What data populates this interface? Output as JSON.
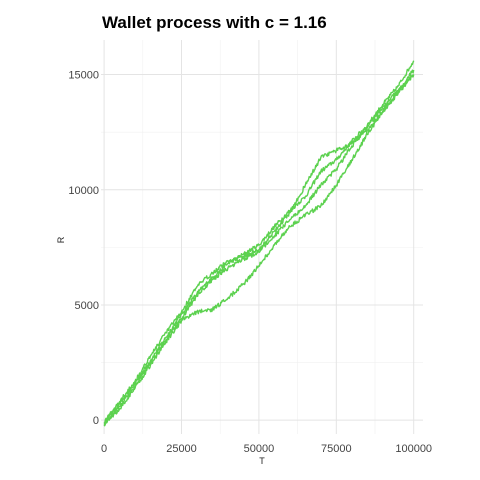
{
  "chart_data": {
    "type": "line",
    "title": "Wallet process with c =  1.16",
    "xlabel": "T",
    "ylabel": "R",
    "xlim": [
      -1000,
      103000
    ],
    "ylim": [
      -600,
      16500
    ],
    "x_ticks": [
      0,
      25000,
      50000,
      75000,
      100000
    ],
    "x_tick_labels": [
      "0",
      "25000",
      "50000",
      "75000",
      "100000"
    ],
    "y_ticks": [
      0,
      5000,
      10000,
      15000
    ],
    "y_tick_labels": [
      "0",
      "5000",
      "10000",
      "15000"
    ],
    "grid": true,
    "legend": "none",
    "line_color": "#5cd14f",
    "series": [
      {
        "x": [
          0,
          5000,
          10000,
          15000,
          20000,
          25000,
          30000,
          35000,
          40000,
          45000,
          50000,
          55000,
          60000,
          65000,
          70000,
          75000,
          80000,
          85000,
          90000,
          95000,
          100000
        ],
        "values": [
          -100,
          700,
          1600,
          2600,
          3600,
          4600,
          5500,
          6200,
          6800,
          7200,
          7600,
          8400,
          9100,
          9700,
          10800,
          11300,
          12100,
          12800,
          13700,
          14500,
          15600
        ]
      },
      {
        "x": [
          0,
          5000,
          10000,
          15000,
          20000,
          25000,
          30000,
          35000,
          40000,
          45000,
          50000,
          55000,
          60000,
          65000,
          70000,
          75000,
          80000,
          85000,
          90000,
          95000,
          100000
        ],
        "values": [
          -100,
          800,
          1700,
          2800,
          3800,
          4700,
          5800,
          6400,
          6900,
          7100,
          7400,
          8200,
          9000,
          10200,
          11400,
          11700,
          12000,
          12600,
          13400,
          14300,
          15200
        ]
      },
      {
        "x": [
          0,
          5000,
          10000,
          15000,
          20000,
          25000,
          30000,
          35000,
          40000,
          45000,
          50000,
          55000,
          60000,
          65000,
          70000,
          75000,
          80000,
          85000,
          90000,
          95000,
          100000
        ],
        "values": [
          -150,
          600,
          1500,
          2500,
          3500,
          4400,
          5400,
          6100,
          6600,
          7000,
          7300,
          8000,
          8700,
          9300,
          10200,
          10900,
          11900,
          12700,
          13600,
          14300,
          15000
        ]
      },
      {
        "x": [
          0,
          5000,
          10000,
          15000,
          20000,
          25000,
          30000,
          35000,
          40000,
          45000,
          50000,
          55000,
          60000,
          65000,
          70000,
          75000,
          80000,
          85000,
          90000,
          95000,
          100000
        ],
        "values": [
          -200,
          500,
          1400,
          2400,
          3400,
          4300,
          4700,
          4800,
          5300,
          5900,
          6700,
          7600,
          8400,
          8900,
          9300,
          10200,
          11300,
          12400,
          13400,
          14200,
          15000
        ]
      }
    ]
  }
}
